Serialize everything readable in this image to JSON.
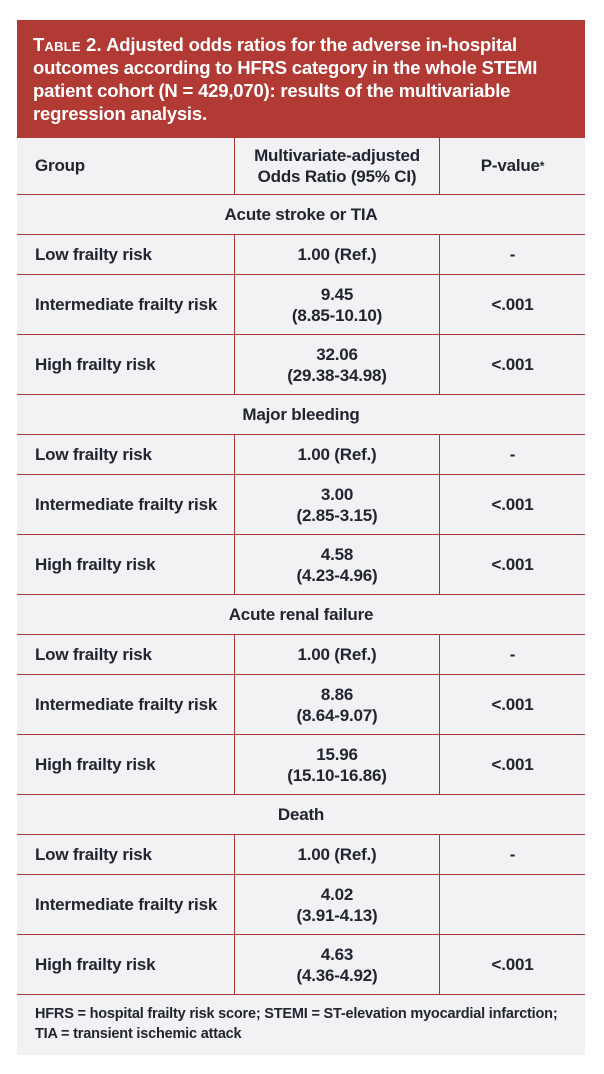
{
  "colors": {
    "banner_red": "#b23a35",
    "rule_red": "#a93538",
    "table_background": "#f2f2f4",
    "text_ink": "#21252f",
    "banner_text": "#ffffff"
  },
  "title": {
    "label": "Table 2.",
    "text": " Adjusted odds ratios for the adverse in-hospital outcomes according to HFRS category in the whole STEMI patient cohort (N = 429,070): results of the multivariable regression analysis."
  },
  "table": {
    "columns": {
      "group": "Group",
      "odds_ratio": "Multivariate-adjusted Odds Ratio (95% CI)",
      "pvalue": "P-value",
      "pvalue_star": "*"
    },
    "sections": [
      {
        "name": "Acute stroke or TIA",
        "rows": [
          {
            "group": "Low frailty risk",
            "or": "1.00 (Ref.)",
            "ci": "",
            "p": "-"
          },
          {
            "group": "Intermediate frailty risk",
            "or": "9.45",
            "ci": "(8.85-10.10)",
            "p": "<.001"
          },
          {
            "group": "High frailty risk",
            "or": "32.06",
            "ci": "(29.38-34.98)",
            "p": "<.001"
          }
        ]
      },
      {
        "name": "Major bleeding",
        "rows": [
          {
            "group": "Low frailty risk",
            "or": "1.00 (Ref.)",
            "ci": "",
            "p": "-"
          },
          {
            "group": "Intermediate frailty risk",
            "or": "3.00",
            "ci": "(2.85-3.15)",
            "p": "<.001"
          },
          {
            "group": "High frailty risk",
            "or": "4.58",
            "ci": "(4.23-4.96)",
            "p": "<.001"
          }
        ]
      },
      {
        "name": "Acute renal failure",
        "rows": [
          {
            "group": "Low frailty risk",
            "or": "1.00 (Ref.)",
            "ci": "",
            "p": "-"
          },
          {
            "group": "Intermediate frailty risk",
            "or": "8.86",
            "ci": "(8.64-9.07)",
            "p": "<.001"
          },
          {
            "group": "High frailty risk",
            "or": "15.96",
            "ci": "(15.10-16.86)",
            "p": "<.001"
          }
        ]
      },
      {
        "name": "Death",
        "rows": [
          {
            "group": "Low frailty risk",
            "or": "1.00 (Ref.)",
            "ci": "",
            "p": "-"
          },
          {
            "group": "Intermediate frailty risk",
            "or": "4.02",
            "ci": "(3.91-4.13)",
            "p": ""
          },
          {
            "group": "High frailty risk",
            "or": "4.63",
            "ci": "(4.36-4.92)",
            "p": "<.001"
          }
        ]
      }
    ],
    "footnote": "HFRS = hospital frailty risk score; STEMI = ST-elevation myocardial infarction; TIA = transient ischemic attack"
  }
}
